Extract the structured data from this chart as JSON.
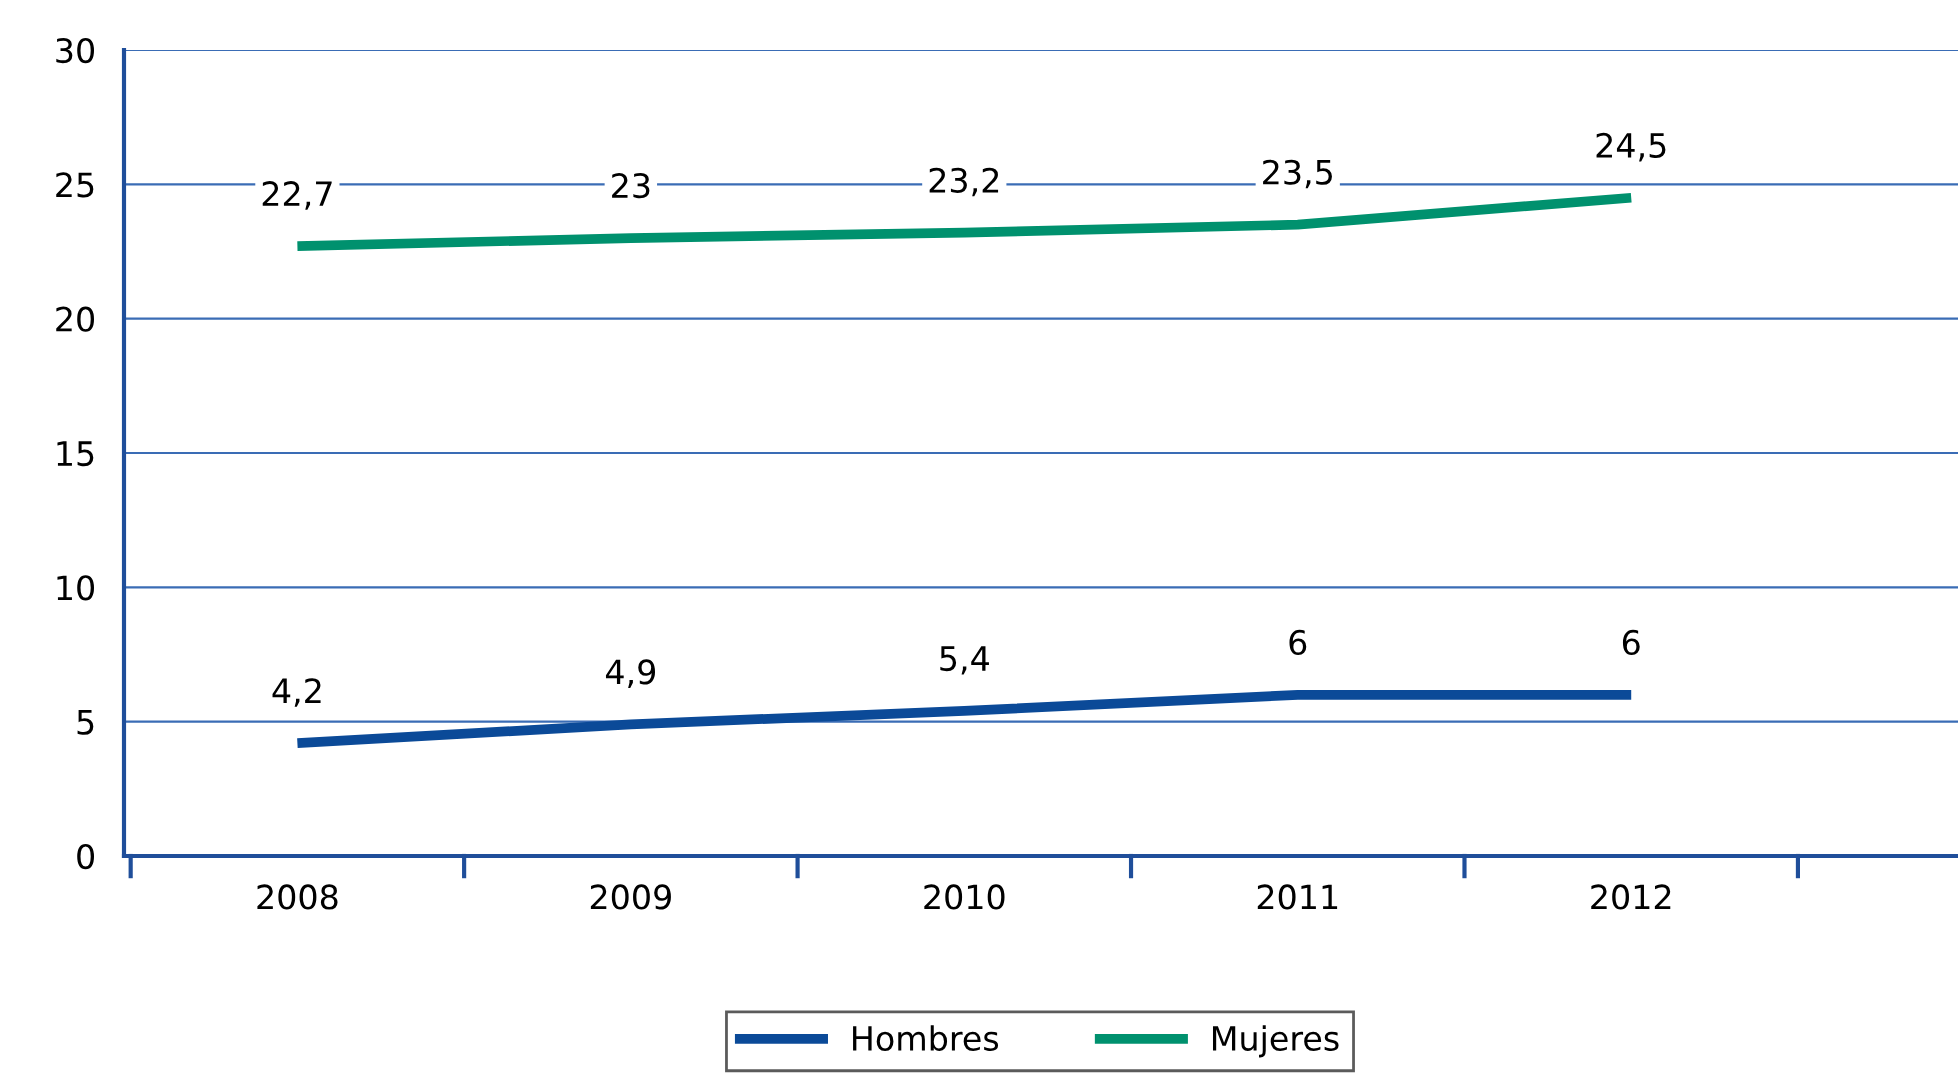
{
  "chart_data": {
    "type": "line",
    "categories": [
      "2008",
      "2009",
      "2010",
      "2011",
      "2012"
    ],
    "series": [
      {
        "name": "Hombres",
        "color": "#0b4a98",
        "values": [
          4.2,
          4.9,
          5.4,
          6,
          6
        ],
        "value_labels": [
          "4,2",
          "4,9",
          "5,4",
          "6",
          "6"
        ]
      },
      {
        "name": "Mujeres",
        "color": "#00916e",
        "values": [
          22.7,
          23,
          23.2,
          23.5,
          24.5
        ],
        "value_labels": [
          "22,7",
          "23",
          "23,2",
          "23,5",
          "24,5"
        ]
      }
    ],
    "ylim": [
      0,
      30
    ],
    "yticks": [
      0,
      5,
      10,
      15,
      20,
      25,
      30
    ],
    "grid": "y",
    "legend": "bottom",
    "marker": "none",
    "line_style": "solid"
  }
}
